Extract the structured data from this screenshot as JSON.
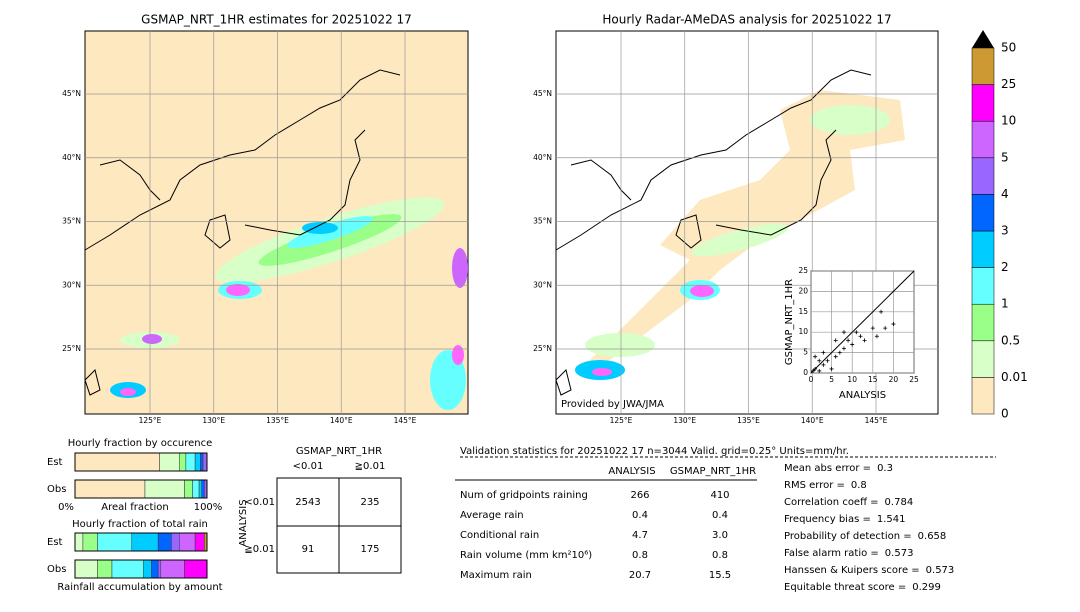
{
  "left_map": {
    "title": "GSMAP_NRT_1HR estimates for 20251022 17",
    "lat_labels": [
      "45°N",
      "40°N",
      "35°N",
      "30°N",
      "25°N"
    ],
    "lon_labels": [
      "125°E",
      "130°E",
      "135°E",
      "140°E",
      "145°E"
    ]
  },
  "right_map": {
    "title": "Hourly Radar-AMeDAS analysis for 20251022 17",
    "lat_labels": [
      "45°N",
      "40°N",
      "35°N",
      "30°N",
      "25°N"
    ],
    "lon_labels": [
      "125°E",
      "130°E",
      "135°E",
      "140°E",
      "145°E"
    ],
    "credit": "Provided by JWA/JMA"
  },
  "colorbar": {
    "levels": [
      0,
      0.01,
      0.5,
      1,
      2,
      3,
      4,
      5,
      10,
      25,
      50
    ],
    "colors": [
      "#fde8c0",
      "#d9ffc8",
      "#99ff88",
      "#66ffff",
      "#00ccff",
      "#0066ff",
      "#9966ff",
      "#cc66ff",
      "#ff00ff",
      "#cc9933"
    ],
    "over_color": "#000000"
  },
  "scatter": {
    "xlabel": "ANALYSIS",
    "ylabel": "GSMAP_NRT_1HR",
    "xlim": [
      0,
      25
    ],
    "ylim": [
      0,
      25
    ],
    "xticks": [
      0,
      5,
      10,
      15,
      20,
      25
    ],
    "yticks": [
      0,
      5,
      10,
      15,
      20,
      25
    ],
    "x": [
      0.5,
      1,
      2,
      3,
      1,
      4,
      5,
      6,
      7,
      8,
      9,
      10,
      11,
      12,
      13,
      15,
      16,
      17,
      18,
      20,
      8,
      6,
      2,
      3
    ],
    "y": [
      0.5,
      1,
      0.5,
      2,
      4,
      3,
      1,
      4,
      5,
      6,
      8,
      7,
      10,
      9,
      8,
      11,
      9,
      15,
      11,
      12,
      10,
      8,
      3,
      5
    ]
  },
  "occurrence": {
    "title": "Hourly fraction by occurence",
    "rows": [
      "Est",
      "Obs"
    ],
    "fractions": [
      [
        0.64,
        0.15,
        0.05,
        0.07,
        0.04,
        0.02,
        0.03,
        0,
        0,
        0
      ],
      [
        0.53,
        0.3,
        0.06,
        0.05,
        0.02,
        0.02,
        0.02,
        0,
        0,
        0
      ]
    ],
    "axis_left": "0%",
    "axis_label": "Areal fraction",
    "axis_right": "100%"
  },
  "accumulation": {
    "title": "Hourly fraction of total rain",
    "rows": [
      "Est",
      "Obs"
    ],
    "fractions": [
      [
        0,
        0.06,
        0.11,
        0.26,
        0.2,
        0.1,
        0.06,
        0.12,
        0.07,
        0.02
      ],
      [
        0,
        0.17,
        0.11,
        0.24,
        0.06,
        0.05,
        0.02,
        0.18,
        0.17,
        0
      ]
    ],
    "xlabel": "Rainfall accumulation by amount"
  },
  "contingency": {
    "title": "GSMAP_NRT_1HR",
    "columns": [
      "<0.01",
      "≧0.01"
    ],
    "row_title": "ANALYSIS",
    "rows": [
      "<0.01",
      "≧0.01"
    ],
    "cells": [
      [
        2543,
        235
      ],
      [
        91,
        175
      ]
    ]
  },
  "validation": {
    "header": "Validation statistics for 20251022 17  n=3044 Valid. grid=0.25° Units=mm/hr.",
    "columns": [
      "ANALYSIS",
      "GSMAP_NRT_1HR"
    ],
    "rows": [
      {
        "label": "Num of gridpoints raining",
        "values": [
          266,
          410
        ]
      },
      {
        "label": "Average rain",
        "values": [
          0.4,
          0.4
        ]
      },
      {
        "label": "Conditional rain",
        "values": [
          4.7,
          "3.0"
        ]
      },
      {
        "label": "Rain volume (mm km²10⁶)",
        "values": [
          0.8,
          0.8
        ]
      },
      {
        "label": "Maximum rain",
        "values": [
          20.7,
          15.5
        ]
      }
    ],
    "scores": [
      {
        "label": "Mean abs error =",
        "value": 0.3
      },
      {
        "label": "RMS error =",
        "value": 0.8
      },
      {
        "label": "Correlation coeff =",
        "value": 0.784
      },
      {
        "label": "Frequency bias =",
        "value": 1.541
      },
      {
        "label": "Probability of detection =",
        "value": 0.658
      },
      {
        "label": "False alarm ratio =",
        "value": 0.573
      },
      {
        "label": "Hanssen & Kuipers score =",
        "value": 0.573
      },
      {
        "label": "Equitable threat score =",
        "value": 0.299
      }
    ]
  }
}
